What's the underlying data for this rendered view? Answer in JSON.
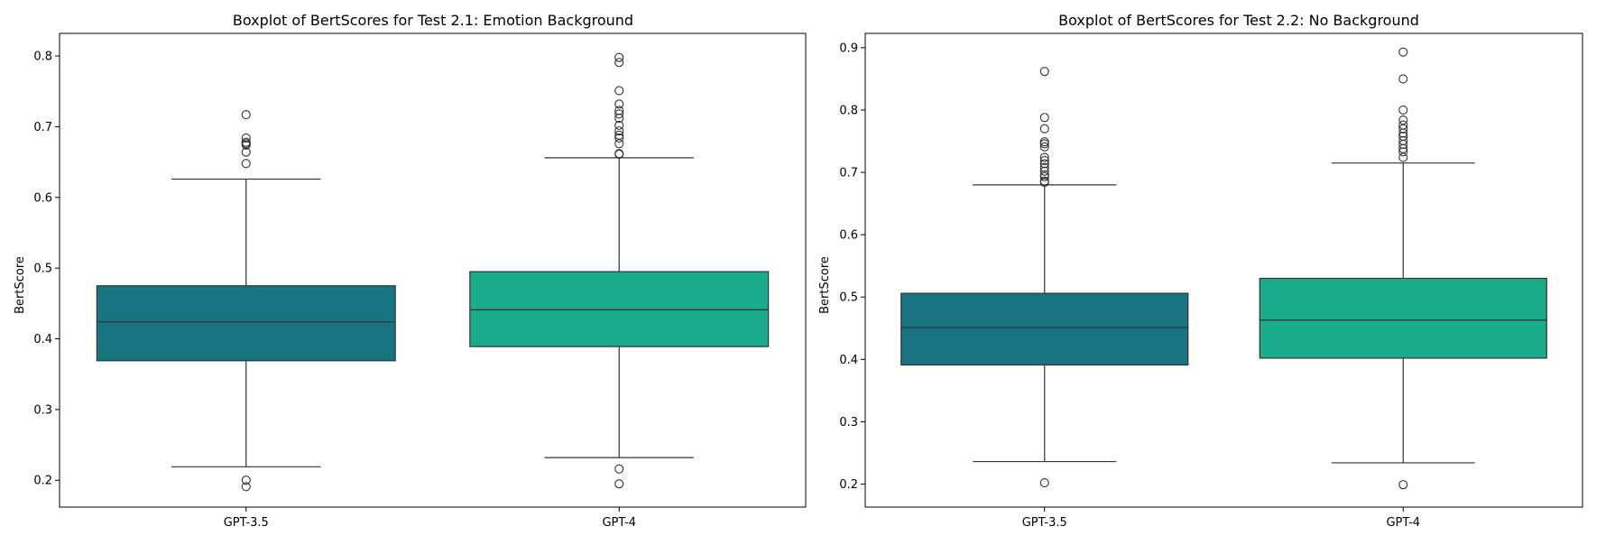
{
  "chart_data": [
    {
      "type": "boxplot",
      "title": "Boxplot of BertScores for Test 2.1: Emotion Background",
      "xlabel": "",
      "ylabel": "BertScore",
      "ylim": [
        0.162,
        0.832
      ],
      "yticks": [
        "0.2",
        "0.3",
        "0.4",
        "0.5",
        "0.6",
        "0.7",
        "0.8"
      ],
      "categories": [
        "GPT-3.5",
        "GPT-4"
      ],
      "grid": false,
      "boxes": [
        {
          "category": "GPT-3.5",
          "color": "#177480",
          "whisker_low": 0.219,
          "q1": 0.369,
          "median": 0.424,
          "q3": 0.475,
          "whisker_high": 0.626,
          "outliers": [
            0.191,
            0.2,
            0.648,
            0.664,
            0.674,
            0.676,
            0.678,
            0.684,
            0.717
          ]
        },
        {
          "category": "GPT-4",
          "color": "#1aab8b",
          "whisker_low": 0.232,
          "q1": 0.389,
          "median": 0.441,
          "q3": 0.495,
          "whisker_high": 0.656,
          "outliers": [
            0.195,
            0.216,
            0.661,
            0.662,
            0.676,
            0.684,
            0.688,
            0.694,
            0.702,
            0.712,
            0.718,
            0.723,
            0.732,
            0.751,
            0.791,
            0.798
          ]
        }
      ]
    },
    {
      "type": "boxplot",
      "title": "Boxplot of BertScores for Test 2.2: No Background",
      "xlabel": "",
      "ylabel": "BertScore",
      "ylim": [
        0.163,
        0.923
      ],
      "yticks": [
        "0.2",
        "0.3",
        "0.4",
        "0.5",
        "0.6",
        "0.7",
        "0.8",
        "0.9"
      ],
      "categories": [
        "GPT-3.5",
        "GPT-4"
      ],
      "grid": false,
      "boxes": [
        {
          "category": "GPT-3.5",
          "color": "#177480",
          "whisker_low": 0.236,
          "q1": 0.391,
          "median": 0.451,
          "q3": 0.506,
          "whisker_high": 0.68,
          "outliers": [
            0.202,
            0.684,
            0.686,
            0.693,
            0.696,
            0.702,
            0.708,
            0.714,
            0.719,
            0.724,
            0.741,
            0.746,
            0.749,
            0.77,
            0.788,
            0.862
          ]
        },
        {
          "category": "GPT-4",
          "color": "#1aab8b",
          "whisker_low": 0.234,
          "q1": 0.402,
          "median": 0.463,
          "q3": 0.53,
          "whisker_high": 0.715,
          "outliers": [
            0.199,
            0.724,
            0.733,
            0.738,
            0.745,
            0.751,
            0.758,
            0.763,
            0.77,
            0.776,
            0.784,
            0.8,
            0.85,
            0.893
          ]
        }
      ]
    }
  ]
}
